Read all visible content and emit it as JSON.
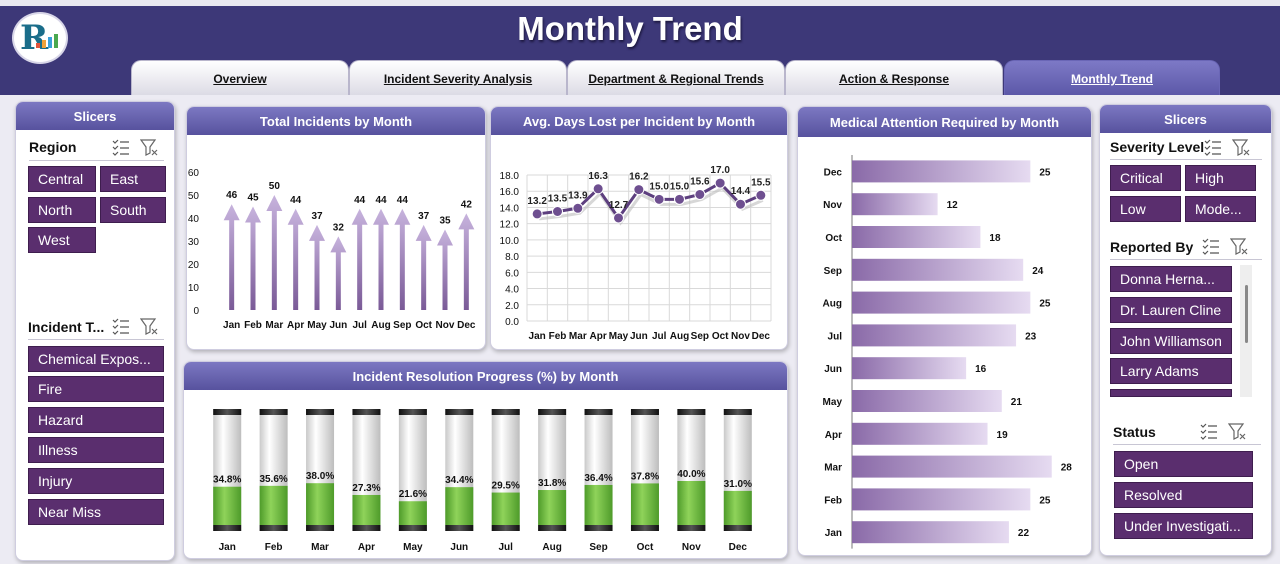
{
  "header": {
    "title": "Monthly Trend"
  },
  "tabs": [
    {
      "label": "Overview"
    },
    {
      "label": "Incident Severity Analysis"
    },
    {
      "label": "Department & Regional Trends"
    },
    {
      "label": "Action & Response"
    },
    {
      "label": "Monthly Trend",
      "active": true
    }
  ],
  "left_slicers": {
    "title": "Slicers",
    "region": {
      "label": "Region",
      "items": [
        "Central",
        "East",
        "North",
        "South",
        "West"
      ]
    },
    "incident_type": {
      "label": "Incident T...",
      "items": [
        "Chemical Expos...",
        "Fire",
        "Hazard",
        "Illness",
        "Injury",
        "Near Miss"
      ]
    }
  },
  "right_slicers": {
    "title": "Slicers",
    "severity": {
      "label": "Severity Level",
      "items": [
        "Critical",
        "High",
        "Low",
        "Mode..."
      ]
    },
    "reported_by": {
      "label": "Reported By",
      "items": [
        "Donna Herna...",
        "Dr. Lauren Cline",
        "John Williamson",
        "Larry Adams"
      ]
    },
    "status": {
      "label": "Status",
      "items": [
        "Open",
        "Resolved",
        "Under Investigati..."
      ]
    }
  },
  "colors": {
    "accent": "#5a2e6e",
    "header": "#3d3878",
    "panel_head": "#6a66b6",
    "bar_purple": "#a98bc6",
    "progress_green": "#72c041"
  },
  "chart_data": [
    {
      "type": "bar",
      "title": "Total Incidents by Month",
      "categories": [
        "Jan",
        "Feb",
        "Mar",
        "Apr",
        "May",
        "Jun",
        "Jul",
        "Aug",
        "Sep",
        "Oct",
        "Nov",
        "Dec"
      ],
      "values": [
        46,
        45,
        50,
        44,
        37,
        32,
        44,
        44,
        44,
        37,
        35,
        42
      ],
      "yticks": [
        "0",
        "10",
        "20",
        "30",
        "40",
        "50",
        "60"
      ],
      "ylim": [
        0,
        60
      ]
    },
    {
      "type": "line",
      "title": "Avg. Days Lost per Incident by Month",
      "categories": [
        "Jan",
        "Feb",
        "Mar",
        "Apr",
        "May",
        "Jun",
        "Jul",
        "Aug",
        "Sep",
        "Oct",
        "Nov",
        "Dec"
      ],
      "values": [
        13.2,
        13.5,
        13.9,
        16.3,
        12.7,
        16.2,
        15.0,
        15.0,
        15.6,
        17.0,
        14.4,
        15.5
      ],
      "labels": [
        "13.2",
        "13.5",
        "13.9",
        "16.3",
        "12.7",
        "16.2",
        "15.0",
        "15.0",
        "15.6",
        "17.0",
        "14.4",
        "15.5"
      ],
      "yticks": [
        "0.0",
        "2.0",
        "4.0",
        "6.0",
        "8.0",
        "10.0",
        "12.0",
        "14.0",
        "16.0",
        "18.0"
      ],
      "ylim": [
        0,
        18
      ],
      "grid": true
    },
    {
      "type": "bar",
      "orientation": "horizontal",
      "title": "Medical Attention Required by Month",
      "categories": [
        "Dec",
        "Nov",
        "Oct",
        "Sep",
        "Aug",
        "Jul",
        "Jun",
        "May",
        "Apr",
        "Mar",
        "Feb",
        "Jan"
      ],
      "values": [
        25,
        12,
        18,
        24,
        25,
        23,
        16,
        21,
        19,
        28,
        25,
        22
      ],
      "xlim": [
        0,
        30
      ]
    },
    {
      "type": "bar",
      "title": "Incident Resolution Progress (%) by Month",
      "categories": [
        "Jan",
        "Feb",
        "Mar",
        "Apr",
        "May",
        "Jun",
        "Jul",
        "Aug",
        "Sep",
        "Oct",
        "Nov",
        "Dec"
      ],
      "values": [
        34.8,
        35.6,
        38.0,
        27.3,
        21.6,
        34.4,
        29.5,
        31.8,
        36.4,
        37.8,
        40.0,
        31.0
      ],
      "labels": [
        "34.8%",
        "35.6%",
        "38.0%",
        "27.3%",
        "21.6%",
        "34.4%",
        "29.5%",
        "31.8%",
        "36.4%",
        "37.8%",
        "40.0%",
        "31.0%"
      ],
      "ylim": [
        0,
        100
      ]
    }
  ]
}
